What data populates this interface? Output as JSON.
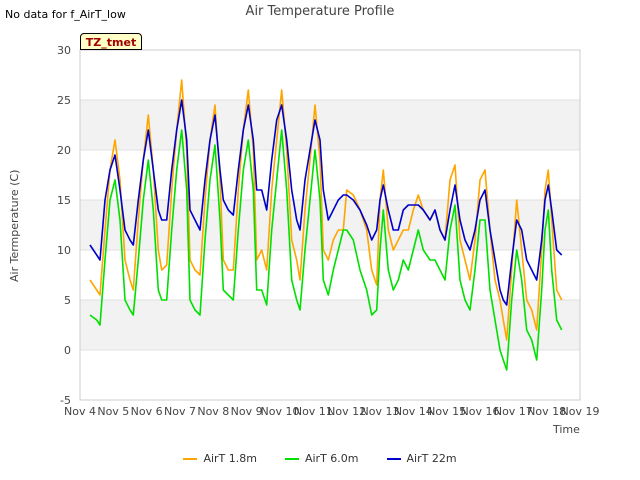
{
  "header": {
    "nodata_text": "No data for f_AirT_low",
    "title": "Air Temperature Profile",
    "tz_label": "TZ_tmet"
  },
  "chart_data": {
    "type": "line",
    "title": "Air Temperature Profile",
    "xlabel": "Time",
    "ylabel": "Air Termperature (C)",
    "ylim": [
      -5,
      30
    ],
    "yticks": [
      -5,
      0,
      5,
      10,
      15,
      20,
      25,
      30
    ],
    "xlim": [
      4,
      19
    ],
    "xticks": [
      4,
      5,
      6,
      7,
      8,
      9,
      10,
      11,
      12,
      13,
      14,
      15,
      16,
      17,
      18,
      19
    ],
    "xtick_labels": [
      "Nov 4",
      "Nov 5",
      "Nov 6",
      "Nov 7",
      "Nov 8",
      "Nov 9",
      "Nov 10",
      "Nov 11",
      "Nov 12",
      "Nov 13",
      "Nov 14",
      "Nov 15",
      "Nov 16",
      "Nov 17",
      "Nov 18",
      "Nov 19"
    ],
    "grid": true,
    "legend_position": "bottom",
    "series": [
      {
        "name": "AirT 1.8m",
        "color": "#ffa500",
        "x": [
          4.3,
          4.5,
          4.6,
          4.75,
          4.9,
          5.05,
          5.2,
          5.35,
          5.5,
          5.6,
          5.75,
          5.9,
          6.05,
          6.2,
          6.35,
          6.45,
          6.6,
          6.75,
          6.9,
          7.05,
          7.2,
          7.3,
          7.45,
          7.6,
          7.75,
          7.9,
          8.05,
          8.2,
          8.3,
          8.45,
          8.6,
          8.75,
          8.9,
          9.05,
          9.2,
          9.3,
          9.45,
          9.6,
          9.75,
          9.9,
          10.05,
          10.2,
          10.35,
          10.5,
          10.6,
          10.75,
          10.9,
          11.05,
          11.2,
          11.3,
          11.45,
          11.6,
          11.75,
          11.9,
          12.0,
          12.2,
          12.4,
          12.6,
          12.75,
          12.9,
          13.0,
          13.1,
          13.25,
          13.4,
          13.55,
          13.7,
          13.85,
          14.0,
          14.15,
          14.3,
          14.5,
          14.65,
          14.8,
          14.95,
          15.1,
          15.25,
          15.4,
          15.55,
          15.7,
          15.85,
          16.0,
          16.15,
          16.3,
          16.45,
          16.6,
          16.7,
          16.8,
          16.95,
          17.1,
          17.25,
          17.4,
          17.55,
          17.7,
          17.85,
          17.95,
          18.05,
          18.15,
          18.3,
          18.45
        ],
        "values": [
          7,
          6,
          5.5,
          12,
          18,
          21,
          17,
          9,
          7,
          6,
          13,
          19,
          23.5,
          18,
          10,
          8,
          8.5,
          16,
          22,
          27,
          20,
          9,
          8,
          7.5,
          15,
          21,
          24.5,
          17,
          9,
          8,
          8,
          16,
          22,
          26,
          20,
          9,
          10,
          8,
          16,
          21,
          26,
          20,
          11,
          9,
          7,
          14,
          19,
          24.5,
          19,
          10,
          9,
          11,
          12,
          12,
          16,
          15.5,
          14,
          12,
          8,
          6.5,
          15,
          18,
          12,
          10,
          11,
          12,
          12,
          14,
          15.5,
          14,
          13,
          14,
          12,
          11,
          17,
          18.5,
          11,
          9,
          7,
          11,
          17,
          18,
          12,
          7,
          5,
          3,
          1,
          8,
          15,
          10,
          5,
          4,
          2,
          10,
          16,
          18,
          13,
          6,
          5
        ]
      },
      {
        "name": "AirT 6.0m",
        "color": "#00e000",
        "x": [
          4.3,
          4.5,
          4.6,
          4.75,
          4.9,
          5.05,
          5.2,
          5.35,
          5.5,
          5.6,
          5.75,
          5.9,
          6.05,
          6.2,
          6.35,
          6.45,
          6.6,
          6.75,
          6.9,
          7.05,
          7.2,
          7.3,
          7.45,
          7.6,
          7.75,
          7.9,
          8.05,
          8.2,
          8.3,
          8.45,
          8.6,
          8.75,
          8.9,
          9.05,
          9.2,
          9.3,
          9.45,
          9.6,
          9.75,
          9.9,
          10.05,
          10.2,
          10.35,
          10.5,
          10.6,
          10.75,
          10.9,
          11.05,
          11.2,
          11.3,
          11.45,
          11.6,
          11.75,
          11.9,
          12.0,
          12.2,
          12.4,
          12.6,
          12.75,
          12.9,
          13.0,
          13.1,
          13.25,
          13.4,
          13.55,
          13.7,
          13.85,
          14.0,
          14.15,
          14.3,
          14.5,
          14.65,
          14.8,
          14.95,
          15.1,
          15.25,
          15.4,
          15.55,
          15.7,
          15.85,
          16.0,
          16.15,
          16.3,
          16.45,
          16.6,
          16.7,
          16.8,
          16.95,
          17.1,
          17.25,
          17.4,
          17.55,
          17.7,
          17.85,
          17.95,
          18.05,
          18.15,
          18.3,
          18.45
        ],
        "values": [
          3.5,
          3,
          2.5,
          9,
          15,
          17,
          13,
          5,
          4,
          3.5,
          9,
          15,
          19,
          14,
          6,
          5,
          5,
          12,
          18,
          22,
          16,
          5,
          4,
          3.5,
          11,
          17,
          20.5,
          13,
          6,
          5.5,
          5,
          12,
          18,
          21,
          16,
          6,
          6,
          4.5,
          12,
          17,
          22,
          16,
          7,
          5,
          4,
          10,
          15,
          20,
          15,
          7,
          5.5,
          8,
          10,
          12,
          12,
          11,
          8,
          6,
          3.5,
          4,
          10,
          14,
          8,
          6,
          7,
          9,
          8,
          10,
          12,
          10,
          9,
          9,
          8,
          7,
          12,
          14.5,
          7,
          5,
          4,
          8,
          13,
          13,
          6,
          3,
          0,
          -1,
          -2,
          5,
          10,
          7,
          2,
          1,
          -1,
          6,
          12,
          14,
          8,
          3,
          2
        ]
      },
      {
        "name": "AirT 22m",
        "color": "#0000cc",
        "x": [
          4.3,
          4.5,
          4.6,
          4.75,
          4.9,
          5.05,
          5.2,
          5.35,
          5.5,
          5.6,
          5.75,
          5.9,
          6.05,
          6.2,
          6.35,
          6.45,
          6.6,
          6.75,
          6.9,
          7.05,
          7.2,
          7.3,
          7.45,
          7.6,
          7.75,
          7.9,
          8.05,
          8.2,
          8.3,
          8.45,
          8.6,
          8.75,
          8.9,
          9.05,
          9.2,
          9.3,
          9.45,
          9.6,
          9.75,
          9.9,
          10.05,
          10.2,
          10.35,
          10.5,
          10.6,
          10.75,
          10.9,
          11.05,
          11.2,
          11.3,
          11.45,
          11.6,
          11.75,
          11.9,
          12.0,
          12.2,
          12.4,
          12.6,
          12.75,
          12.9,
          13.0,
          13.1,
          13.25,
          13.4,
          13.55,
          13.7,
          13.85,
          14.0,
          14.15,
          14.3,
          14.5,
          14.65,
          14.8,
          14.95,
          15.1,
          15.25,
          15.4,
          15.55,
          15.7,
          15.85,
          16.0,
          16.15,
          16.3,
          16.45,
          16.6,
          16.7,
          16.8,
          16.95,
          17.1,
          17.25,
          17.4,
          17.55,
          17.7,
          17.85,
          17.95,
          18.05,
          18.15,
          18.3,
          18.45
        ],
        "values": [
          10.5,
          9.5,
          9,
          15,
          18,
          19.5,
          16,
          12,
          11,
          10.5,
          15,
          19,
          22,
          18,
          14,
          13,
          13,
          18,
          22,
          25,
          21,
          14,
          13,
          12,
          17,
          21,
          23.5,
          18,
          15,
          14,
          13.5,
          18,
          22,
          24.5,
          21,
          16,
          16,
          14,
          19,
          23,
          24.5,
          21,
          16,
          13,
          12,
          17,
          20,
          23,
          21,
          16,
          13,
          14,
          15,
          15.5,
          15.5,
          15,
          14,
          12.5,
          11,
          12,
          15,
          16.5,
          14,
          12,
          12,
          14,
          14.5,
          14.5,
          14.5,
          14,
          13,
          14,
          12,
          11,
          14,
          16.5,
          13,
          11,
          10,
          12,
          15,
          16,
          12,
          9,
          6,
          5,
          4.5,
          9,
          13,
          12,
          9,
          8,
          7,
          11,
          15,
          16.5,
          14,
          10,
          9.5
        ]
      }
    ]
  }
}
